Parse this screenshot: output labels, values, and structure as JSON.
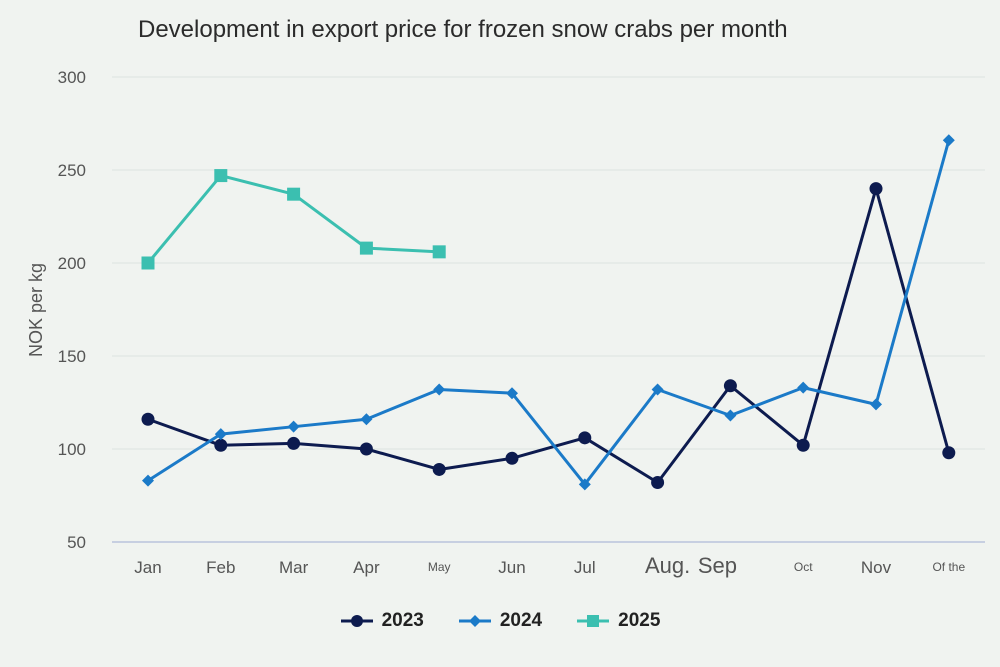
{
  "title": "Development in export price for frozen snow crabs per month",
  "chart_data": {
    "type": "line",
    "title": "Development in export price for frozen snow crabs per month",
    "ylabel": "NOK per kg",
    "xlabel": "",
    "ylim": [
      50,
      300
    ],
    "yticks": [
      50,
      100,
      150,
      200,
      250,
      300
    ],
    "categories": [
      "Jan",
      "Feb",
      "Mar",
      "Apr",
      "May",
      "Jun",
      "Jul",
      "Aug.",
      "Sep",
      "Oct",
      "Nov",
      "Of the"
    ],
    "grid": true,
    "legend_position": "bottom",
    "series": [
      {
        "name": "2023",
        "color": "#0d1b4f",
        "marker": "circle",
        "values": [
          116,
          102,
          103,
          100,
          89,
          95,
          106,
          82,
          134,
          102,
          240,
          98
        ]
      },
      {
        "name": "2024",
        "color": "#1b7ac8",
        "marker": "diamond",
        "values": [
          83,
          108,
          112,
          116,
          132,
          130,
          81,
          132,
          118,
          133,
          124,
          266
        ]
      },
      {
        "name": "2025",
        "color": "#3bbfb0",
        "marker": "square",
        "values": [
          200,
          247,
          237,
          208,
          206,
          null,
          null,
          null,
          null,
          null,
          null,
          null
        ]
      }
    ]
  }
}
